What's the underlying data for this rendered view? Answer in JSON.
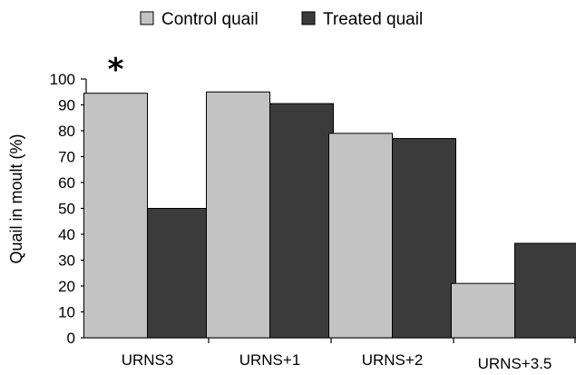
{
  "chart_data": {
    "type": "bar",
    "title": "",
    "xlabel": "",
    "ylabel": "Quail in moult (%)",
    "ylim": [
      0,
      100
    ],
    "yticks": [
      0,
      10,
      20,
      30,
      40,
      50,
      60,
      70,
      80,
      90,
      100
    ],
    "grid": false,
    "legend_position": "top-center",
    "categories": [
      "URNS3",
      "URNS+1",
      "URNS+2",
      "URNS+3.5"
    ],
    "series": [
      {
        "name": "Control quail",
        "values": [
          94.5,
          95,
          79,
          21
        ],
        "color": "#c3c3c3"
      },
      {
        "name": "Treated quail",
        "values": [
          50,
          90.5,
          77,
          36.5
        ],
        "color": "#3b3b3b"
      }
    ],
    "annotations": [
      {
        "text": "*",
        "category": "URNS3"
      }
    ]
  }
}
